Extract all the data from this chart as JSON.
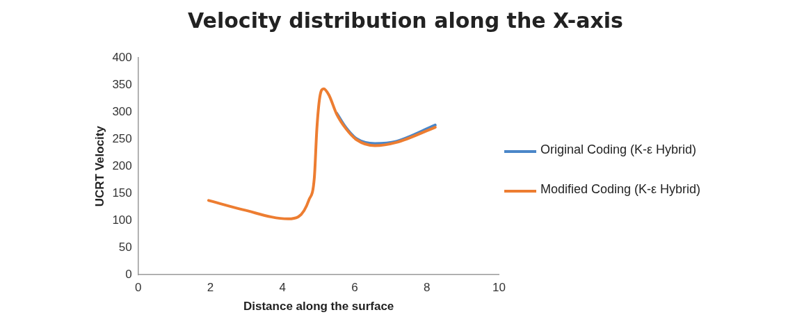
{
  "chart_data": {
    "type": "line",
    "title": "Velocity distribution along the X-axis",
    "xlabel": "Distance along the surface",
    "ylabel": "UCRT Velocity",
    "xlim": [
      0,
      10
    ],
    "xticks": [
      0,
      2,
      4,
      6,
      8,
      10
    ],
    "ylim": [
      0,
      400
    ],
    "yticks": [
      0,
      50,
      100,
      150,
      200,
      250,
      300,
      350,
      400
    ],
    "grid": false,
    "legend": "right",
    "marker": "none",
    "line_style": "solid",
    "series": [
      {
        "name": "Original Coding (K-ε Hybrid)",
        "color": "#4a86c8",
        "x": [
          5.5,
          5.76,
          6.05,
          6.56,
          7.15,
          8.23
        ],
        "values": [
          298,
          271,
          251,
          242,
          246,
          276
        ]
      },
      {
        "name": "Modified Coding (K-ε Hybrid)",
        "color": "#ed7d31",
        "x": [
          1.95,
          2.9,
          4.15,
          4.44,
          4.73,
          4.88,
          4.95,
          5.03,
          5.14,
          5.28,
          5.5,
          5.76,
          6.05,
          6.56,
          7.15,
          8.23
        ],
        "values": [
          137,
          120,
          103,
          107,
          138,
          179,
          269,
          327,
          343,
          332,
          296,
          269,
          249,
          238,
          244,
          272
        ]
      }
    ]
  }
}
